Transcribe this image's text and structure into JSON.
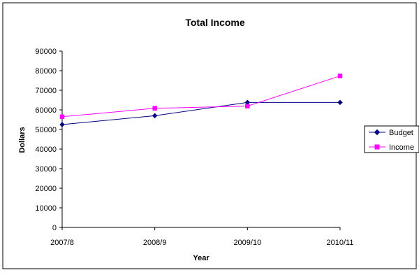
{
  "chart_data": {
    "type": "line",
    "title": "Total Income",
    "xlabel": "Year",
    "ylabel": "Dollars",
    "categories": [
      "2007/8",
      "2008/9",
      "2009/10",
      "2010/11"
    ],
    "ylim": [
      0,
      90000
    ],
    "yticks": [
      "0",
      "10000",
      "20000",
      "30000",
      "40000",
      "50000",
      "60000",
      "70000",
      "80000",
      "90000"
    ],
    "grid": false,
    "legend_position": "right",
    "series": [
      {
        "name": "Budget",
        "values": [
          52500,
          57000,
          63800,
          63800
        ],
        "color": "#000080",
        "marker": "diamond"
      },
      {
        "name": "Income",
        "values": [
          56500,
          60800,
          61900,
          77300
        ],
        "color": "#ff00ff",
        "marker": "square"
      }
    ]
  }
}
